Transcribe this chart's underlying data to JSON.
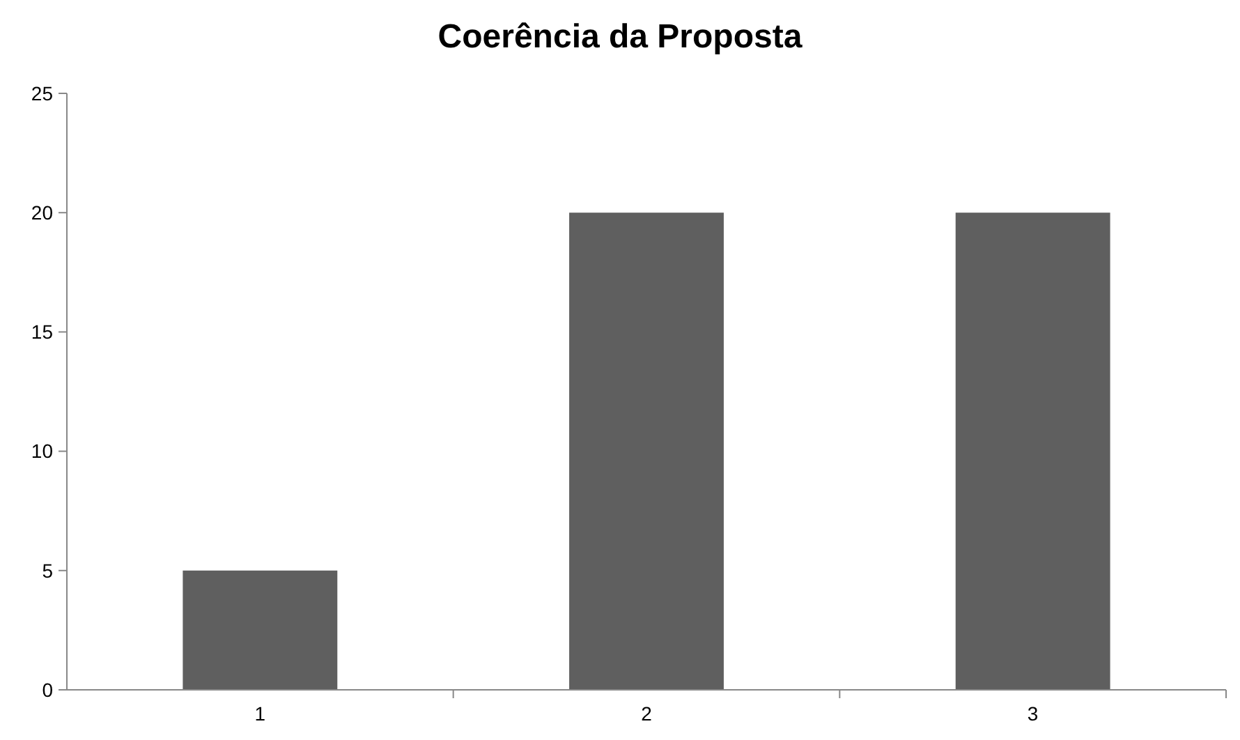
{
  "chart_data": {
    "type": "bar",
    "title": "Coerência  da Proposta",
    "categories": [
      "1",
      "2",
      "3"
    ],
    "values": [
      5,
      20,
      20
    ],
    "color": "#5f5f5f",
    "ylim": [
      0,
      25
    ],
    "yticks": [
      0,
      5,
      10,
      15,
      20,
      25
    ],
    "grid": false
  }
}
